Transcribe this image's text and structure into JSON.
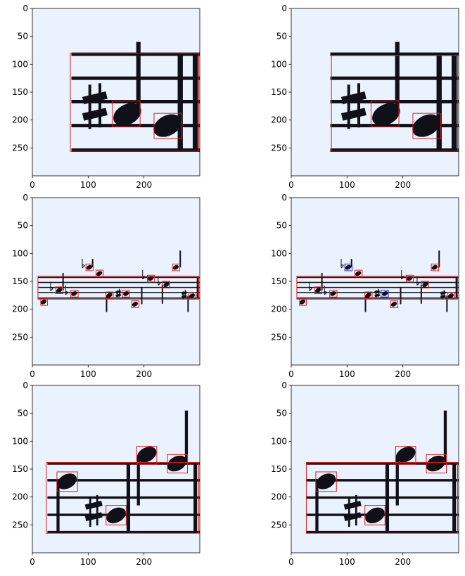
{
  "figure": {
    "background": "#ffffff",
    "canvas_bg": "#eaf2fd",
    "detection_color": "#e41a1c",
    "alt_detection_color": "#1f1fd0",
    "ink_color": "#101018",
    "axis_color": "#000000"
  },
  "chart_data": [
    {
      "type": "image-panel",
      "panel": "row1-left",
      "xlim": [
        0,
        300
      ],
      "ylim": [
        300,
        0
      ],
      "xticks": [
        "0",
        "100",
        "200"
      ],
      "yticks": [
        "0",
        "50",
        "100",
        "150",
        "200",
        "250"
      ],
      "staff": {
        "x": [
          70,
          300
        ],
        "lines_y": [
          82,
          125,
          167,
          210,
          254
        ]
      },
      "barlines_x": [
        265,
        292
      ],
      "noteheads": [
        {
          "cx": 170,
          "cy": 190
        },
        {
          "cx": 242,
          "cy": 210
        }
      ],
      "stems": [
        {
          "x": 190,
          "y1": 60,
          "y2": 185
        }
      ],
      "accidentals": [
        {
          "type": "sharp",
          "x": 112,
          "y": 175
        }
      ],
      "boxes": [
        {
          "x0": 68,
          "y0": 80,
          "x1": 298,
          "y1": 256,
          "color": "red"
        },
        {
          "x0": 143,
          "y0": 166,
          "x1": 193,
          "y1": 212,
          "color": "red"
        },
        {
          "x0": 218,
          "y0": 188,
          "x1": 268,
          "y1": 233,
          "color": "red"
        }
      ]
    },
    {
      "type": "image-panel",
      "panel": "row1-right",
      "xlim": [
        0,
        300
      ],
      "ylim": [
        300,
        0
      ],
      "xticks": [
        "0",
        "100",
        "200"
      ],
      "yticks": [
        "0",
        "50",
        "100",
        "150",
        "200",
        "250"
      ],
      "staff": {
        "x": [
          70,
          300
        ],
        "lines_y": [
          82,
          125,
          167,
          210,
          254
        ]
      },
      "barlines_x": [
        265,
        292
      ],
      "noteheads": [
        {
          "cx": 170,
          "cy": 190
        },
        {
          "cx": 242,
          "cy": 210
        }
      ],
      "stems": [
        {
          "x": 190,
          "y1": 60,
          "y2": 185
        }
      ],
      "accidentals": [
        {
          "type": "sharp",
          "x": 112,
          "y": 175
        }
      ],
      "boxes": [
        {
          "x0": 72,
          "y0": 84,
          "x1": 298,
          "y1": 256,
          "color": "red"
        },
        {
          "x0": 143,
          "y0": 166,
          "x1": 193,
          "y1": 212,
          "color": "red"
        },
        {
          "x0": 218,
          "y0": 188,
          "x1": 268,
          "y1": 233,
          "color": "red"
        }
      ]
    },
    {
      "type": "image-panel",
      "panel": "row2-left",
      "xlim": [
        0,
        300
      ],
      "ylim": [
        300,
        0
      ],
      "xticks": [
        "0",
        "100",
        "200"
      ],
      "yticks": [
        "0",
        "50",
        "100",
        "150",
        "200",
        "250"
      ],
      "staff": {
        "x": [
          10,
          300
        ],
        "lines_y": [
          143,
          152,
          161,
          170,
          180
        ]
      },
      "barlines_x": [
        296
      ],
      "noteheads": [
        {
          "cx": 20,
          "cy": 187
        },
        {
          "cx": 48,
          "cy": 166
        },
        {
          "cx": 75,
          "cy": 172
        },
        {
          "cx": 102,
          "cy": 125
        },
        {
          "cx": 120,
          "cy": 136
        },
        {
          "cx": 138,
          "cy": 175
        },
        {
          "cx": 168,
          "cy": 172
        },
        {
          "cx": 184,
          "cy": 191
        },
        {
          "cx": 212,
          "cy": 145
        },
        {
          "cx": 240,
          "cy": 156
        },
        {
          "cx": 257,
          "cy": 125
        },
        {
          "cx": 286,
          "cy": 176
        }
      ],
      "stems": [
        {
          "x": 55,
          "y1": 135,
          "y2": 166
        },
        {
          "x": 108,
          "y1": 110,
          "y2": 125
        },
        {
          "x": 133,
          "y1": 175,
          "y2": 205
        },
        {
          "x": 196,
          "y1": 160,
          "y2": 191
        },
        {
          "x": 233,
          "y1": 156,
          "y2": 190
        },
        {
          "x": 265,
          "y1": 95,
          "y2": 125
        },
        {
          "x": 279,
          "y1": 176,
          "y2": 205
        }
      ],
      "accidentals": [
        {
          "type": "flat",
          "x": 35,
          "y": 162
        },
        {
          "type": "flat",
          "x": 62,
          "y": 169
        },
        {
          "type": "flat",
          "x": 92,
          "y": 121
        },
        {
          "type": "flat",
          "x": 200,
          "y": 141
        },
        {
          "type": "flat",
          "x": 228,
          "y": 152
        },
        {
          "type": "sharp",
          "x": 154,
          "y": 172
        },
        {
          "type": "sharp",
          "x": 272,
          "y": 174
        }
      ],
      "boxes": [
        {
          "x0": 10,
          "y0": 141,
          "x1": 298,
          "y1": 182,
          "color": "red"
        },
        {
          "x0": 15,
          "y0": 181,
          "x1": 27,
          "y1": 193,
          "color": "red"
        },
        {
          "x0": 42,
          "y0": 160,
          "x1": 55,
          "y1": 172,
          "color": "red"
        },
        {
          "x0": 69,
          "y0": 166,
          "x1": 82,
          "y1": 178,
          "color": "red"
        },
        {
          "x0": 96,
          "y0": 119,
          "x1": 109,
          "y1": 131,
          "color": "red"
        },
        {
          "x0": 114,
          "y0": 130,
          "x1": 127,
          "y1": 142,
          "color": "red"
        },
        {
          "x0": 132,
          "y0": 169,
          "x1": 145,
          "y1": 181,
          "color": "red"
        },
        {
          "x0": 161,
          "y0": 166,
          "x1": 174,
          "y1": 178,
          "color": "red"
        },
        {
          "x0": 178,
          "y0": 185,
          "x1": 191,
          "y1": 197,
          "color": "red"
        },
        {
          "x0": 206,
          "y0": 139,
          "x1": 219,
          "y1": 151,
          "color": "red"
        },
        {
          "x0": 233,
          "y0": 150,
          "x1": 246,
          "y1": 162,
          "color": "red"
        },
        {
          "x0": 251,
          "y0": 119,
          "x1": 264,
          "y1": 131,
          "color": "red"
        },
        {
          "x0": 280,
          "y0": 170,
          "x1": 293,
          "y1": 182,
          "color": "red"
        }
      ]
    },
    {
      "type": "image-panel",
      "panel": "row2-right",
      "xlim": [
        0,
        300
      ],
      "ylim": [
        300,
        0
      ],
      "xticks": [
        "0",
        "100",
        "200"
      ],
      "yticks": [
        "0",
        "50",
        "100",
        "150",
        "200",
        "250"
      ],
      "staff": {
        "x": [
          10,
          300
        ],
        "lines_y": [
          143,
          152,
          161,
          170,
          180
        ]
      },
      "barlines_x": [
        296
      ],
      "noteheads": [
        {
          "cx": 20,
          "cy": 187
        },
        {
          "cx": 48,
          "cy": 166
        },
        {
          "cx": 75,
          "cy": 172
        },
        {
          "cx": 102,
          "cy": 125
        },
        {
          "cx": 120,
          "cy": 136
        },
        {
          "cx": 138,
          "cy": 175
        },
        {
          "cx": 168,
          "cy": 172
        },
        {
          "cx": 184,
          "cy": 191
        },
        {
          "cx": 212,
          "cy": 145
        },
        {
          "cx": 240,
          "cy": 156
        },
        {
          "cx": 257,
          "cy": 125
        },
        {
          "cx": 286,
          "cy": 176
        }
      ],
      "stems": [
        {
          "x": 55,
          "y1": 135,
          "y2": 166
        },
        {
          "x": 108,
          "y1": 110,
          "y2": 125
        },
        {
          "x": 133,
          "y1": 175,
          "y2": 205
        },
        {
          "x": 196,
          "y1": 160,
          "y2": 191
        },
        {
          "x": 233,
          "y1": 156,
          "y2": 190
        },
        {
          "x": 265,
          "y1": 95,
          "y2": 125
        },
        {
          "x": 279,
          "y1": 176,
          "y2": 205
        }
      ],
      "accidentals": [
        {
          "type": "flat",
          "x": 35,
          "y": 162
        },
        {
          "type": "flat",
          "x": 62,
          "y": 169
        },
        {
          "type": "flat",
          "x": 92,
          "y": 121
        },
        {
          "type": "flat",
          "x": 200,
          "y": 141
        },
        {
          "type": "flat",
          "x": 228,
          "y": 152
        },
        {
          "type": "sharp",
          "x": 154,
          "y": 172
        },
        {
          "type": "sharp",
          "x": 272,
          "y": 174
        }
      ],
      "boxes": [
        {
          "x0": 10,
          "y0": 141,
          "x1": 298,
          "y1": 182,
          "color": "red"
        },
        {
          "x0": 15,
          "y0": 181,
          "x1": 27,
          "y1": 193,
          "color": "red"
        },
        {
          "x0": 42,
          "y0": 160,
          "x1": 55,
          "y1": 172,
          "color": "red"
        },
        {
          "x0": 69,
          "y0": 166,
          "x1": 82,
          "y1": 178,
          "color": "red"
        },
        {
          "x0": 96,
          "y0": 119,
          "x1": 109,
          "y1": 131,
          "color": "blue"
        },
        {
          "x0": 114,
          "y0": 130,
          "x1": 127,
          "y1": 142,
          "color": "red"
        },
        {
          "x0": 132,
          "y0": 169,
          "x1": 145,
          "y1": 181,
          "color": "red"
        },
        {
          "x0": 161,
          "y0": 166,
          "x1": 174,
          "y1": 178,
          "color": "blue"
        },
        {
          "x0": 178,
          "y0": 185,
          "x1": 191,
          "y1": 197,
          "color": "red"
        },
        {
          "x0": 206,
          "y0": 139,
          "x1": 219,
          "y1": 151,
          "color": "red"
        },
        {
          "x0": 233,
          "y0": 150,
          "x1": 246,
          "y1": 162,
          "color": "red"
        },
        {
          "x0": 251,
          "y0": 119,
          "x1": 264,
          "y1": 131,
          "color": "red"
        },
        {
          "x0": 280,
          "y0": 170,
          "x1": 293,
          "y1": 182,
          "color": "red"
        }
      ]
    },
    {
      "type": "image-panel",
      "panel": "row3-left",
      "xlim": [
        0,
        300
      ],
      "ylim": [
        300,
        0
      ],
      "xticks": [
        "0",
        "100",
        "200"
      ],
      "yticks": [
        "0",
        "50",
        "100",
        "150",
        "200",
        "250"
      ],
      "staff": {
        "x": [
          27,
          300
        ],
        "lines_y": [
          140,
          170,
          201,
          232,
          263
        ]
      },
      "barlines_x": [
        172,
        292
      ],
      "noteheads": [
        {
          "cx": 62,
          "cy": 172
        },
        {
          "cx": 150,
          "cy": 233
        },
        {
          "cx": 205,
          "cy": 124
        },
        {
          "cx": 259,
          "cy": 140
        }
      ],
      "stems": [
        {
          "x": 46,
          "y1": 172,
          "y2": 262
        },
        {
          "x": 190,
          "y1": 130,
          "y2": 215
        },
        {
          "x": 276,
          "y1": 45,
          "y2": 140
        }
      ],
      "accidentals": [
        {
          "type": "sharp",
          "x": 110,
          "y": 225
        }
      ],
      "boxes": [
        {
          "x0": 25,
          "y0": 138,
          "x1": 298,
          "y1": 265,
          "color": "red"
        },
        {
          "x0": 44,
          "y0": 155,
          "x1": 81,
          "y1": 190,
          "color": "red"
        },
        {
          "x0": 132,
          "y0": 215,
          "x1": 168,
          "y1": 250,
          "color": "red"
        },
        {
          "x0": 187,
          "y0": 109,
          "x1": 223,
          "y1": 141,
          "color": "red"
        },
        {
          "x0": 242,
          "y0": 124,
          "x1": 278,
          "y1": 157,
          "color": "red"
        }
      ]
    },
    {
      "type": "image-panel",
      "panel": "row3-right",
      "xlim": [
        0,
        300
      ],
      "ylim": [
        300,
        0
      ],
      "xticks": [
        "0",
        "100",
        "200"
      ],
      "yticks": [
        "0",
        "50",
        "100",
        "150",
        "200",
        "250"
      ],
      "staff": {
        "x": [
          27,
          300
        ],
        "lines_y": [
          140,
          170,
          201,
          232,
          263
        ]
      },
      "barlines_x": [
        172,
        292
      ],
      "noteheads": [
        {
          "cx": 62,
          "cy": 172
        },
        {
          "cx": 150,
          "cy": 233
        },
        {
          "cx": 205,
          "cy": 124
        },
        {
          "cx": 259,
          "cy": 140
        }
      ],
      "stems": [
        {
          "x": 46,
          "y1": 172,
          "y2": 262
        },
        {
          "x": 190,
          "y1": 130,
          "y2": 215
        },
        {
          "x": 276,
          "y1": 45,
          "y2": 140
        }
      ],
      "accidentals": [
        {
          "type": "sharp",
          "x": 110,
          "y": 225
        }
      ],
      "boxes": [
        {
          "x0": 27,
          "y0": 138,
          "x1": 298,
          "y1": 265,
          "color": "red"
        },
        {
          "x0": 44,
          "y0": 155,
          "x1": 81,
          "y1": 190,
          "color": "red"
        },
        {
          "x0": 132,
          "y0": 215,
          "x1": 168,
          "y1": 250,
          "color": "red"
        },
        {
          "x0": 187,
          "y0": 109,
          "x1": 223,
          "y1": 141,
          "color": "red"
        },
        {
          "x0": 242,
          "y0": 124,
          "x1": 278,
          "y1": 157,
          "color": "red"
        }
      ]
    }
  ]
}
